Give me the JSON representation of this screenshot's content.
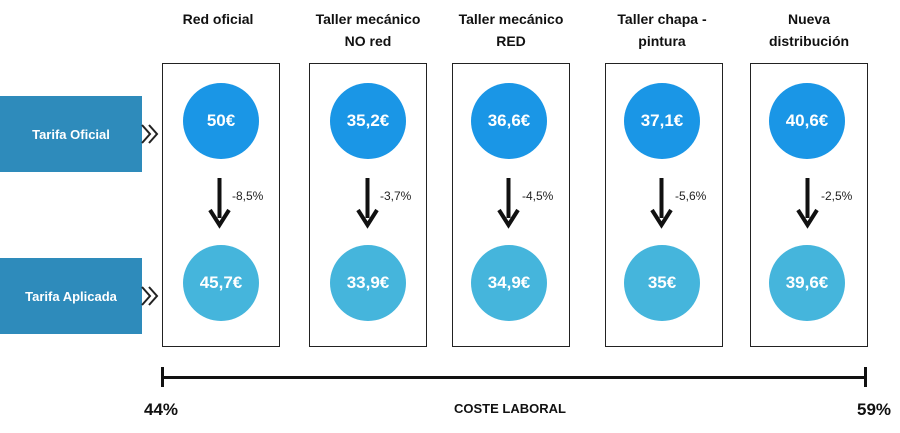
{
  "columns": [
    {
      "header": "Red oficial",
      "oficial": "50€",
      "aplicada": "45,7€",
      "change": "-8,5%"
    },
    {
      "header": "Taller mecánico\nNO red",
      "oficial": "35,2€",
      "aplicada": "33,9€",
      "change": "-3,7%"
    },
    {
      "header": "Taller mecánico\nRED",
      "oficial": "36,6€",
      "aplicada": "34,9€",
      "change": "-4,5%"
    },
    {
      "header": "Taller chapa -\npintura",
      "oficial": "37,1€",
      "aplicada": "35€",
      "change": "-5,6%"
    },
    {
      "header": "Nueva\ndistribución",
      "oficial": "40,6€",
      "aplicada": "39,6€",
      "change": "-2,5%"
    }
  ],
  "rows": {
    "oficial_label": "Tarifa Oficial",
    "aplicada_label": "Tarifa Aplicada"
  },
  "axis": {
    "title": "COSTE LABORAL",
    "min_label": "44%",
    "max_label": "59%"
  },
  "colors": {
    "label_bg": "#2e8bbb",
    "circle_oficial": "#1a96e6",
    "circle_aplicada": "#45b5dc",
    "arrow": "#111111"
  },
  "icons": {
    "row_marker": "double-chevron-right-icon",
    "change": "arrow-down-icon"
  }
}
